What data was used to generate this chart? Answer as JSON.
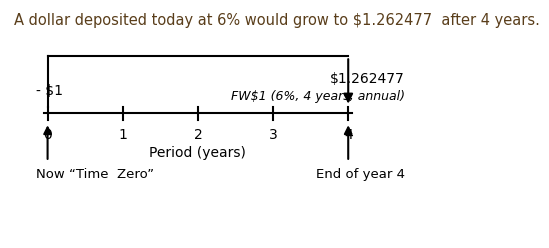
{
  "title": "A dollar deposited today at 6% would grow to $1.262477  after 4 years.",
  "title_fontsize": 10.5,
  "title_color": "#5a3e1b",
  "periods": [
    0,
    1,
    2,
    3,
    4
  ],
  "deposit_label": "- $1",
  "fv_label": "$1.262477",
  "fw_label": "FW$1 (6%, 4 years, annual)",
  "xlabel": "Period (years)",
  "now_label": "Now “Time  Zero”",
  "end_label": "End of year 4",
  "background_color": "#ffffff",
  "line_color": "#000000",
  "text_color": "#000000"
}
